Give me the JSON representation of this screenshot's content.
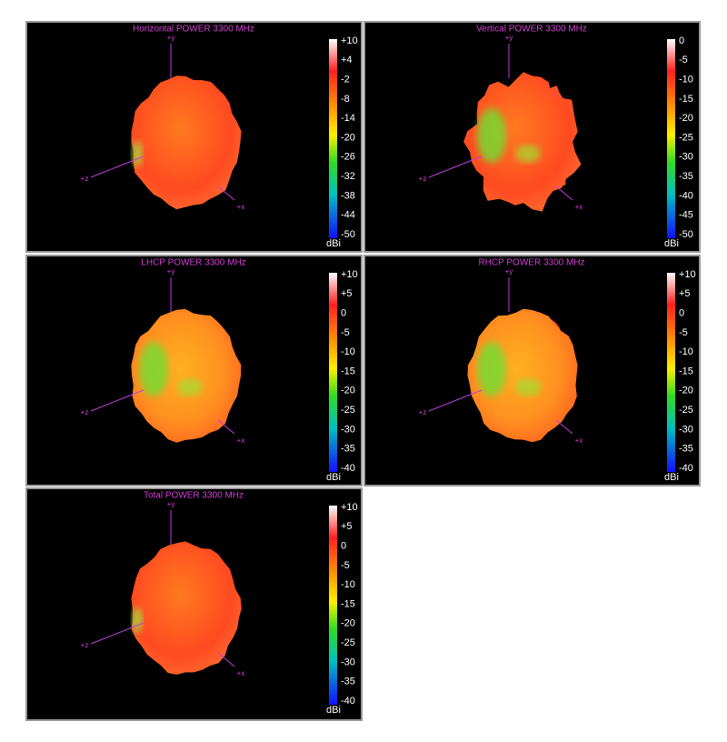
{
  "panels": [
    {
      "title": "Horizontal POWER 3300  MHz",
      "colorbar": {
        "labels": [
          "+10",
          "+4",
          "-2",
          "-8",
          "-14",
          "-20",
          "-26",
          "-32",
          "-38",
          "-44",
          "-50"
        ],
        "unit": "dBi"
      },
      "axes": {
        "y": "+y",
        "z": "+z",
        "x": "+x"
      }
    },
    {
      "title": "Vertical POWER 3300  MHz",
      "colorbar": {
        "labels": [
          "0",
          "-5",
          "-10",
          "-15",
          "-20",
          "-25",
          "-30",
          "-35",
          "-40",
          "-45",
          "-50"
        ],
        "unit": "dBi"
      },
      "axes": {
        "y": "+y",
        "z": "+z",
        "x": "+x"
      }
    },
    {
      "title": "LHCP POWER 3300  MHz",
      "colorbar": {
        "labels": [
          "+10",
          "+5",
          "0",
          "-5",
          "-10",
          "-15",
          "-20",
          "-25",
          "-30",
          "-35",
          "-40"
        ],
        "unit": "dBi"
      },
      "axes": {
        "y": "+y",
        "z": "+z",
        "x": "+x"
      }
    },
    {
      "title": "RHCP POWER 3300  MHz",
      "colorbar": {
        "labels": [
          "+10",
          "+5",
          "0",
          "-5",
          "-10",
          "-15",
          "-20",
          "-25",
          "-30",
          "-35",
          "-40"
        ],
        "unit": "dBi"
      },
      "axes": {
        "y": "+y",
        "z": "+z",
        "x": "+x"
      }
    },
    {
      "title": "Total POWER 3300  MHz",
      "colorbar": {
        "labels": [
          "+10",
          "+5",
          "0",
          "-5",
          "-10",
          "-15",
          "-20",
          "-25",
          "-30",
          "-35",
          "-40"
        ],
        "unit": "dBi"
      },
      "axes": {
        "y": "+y",
        "z": "+z",
        "x": "+x"
      }
    }
  ]
}
